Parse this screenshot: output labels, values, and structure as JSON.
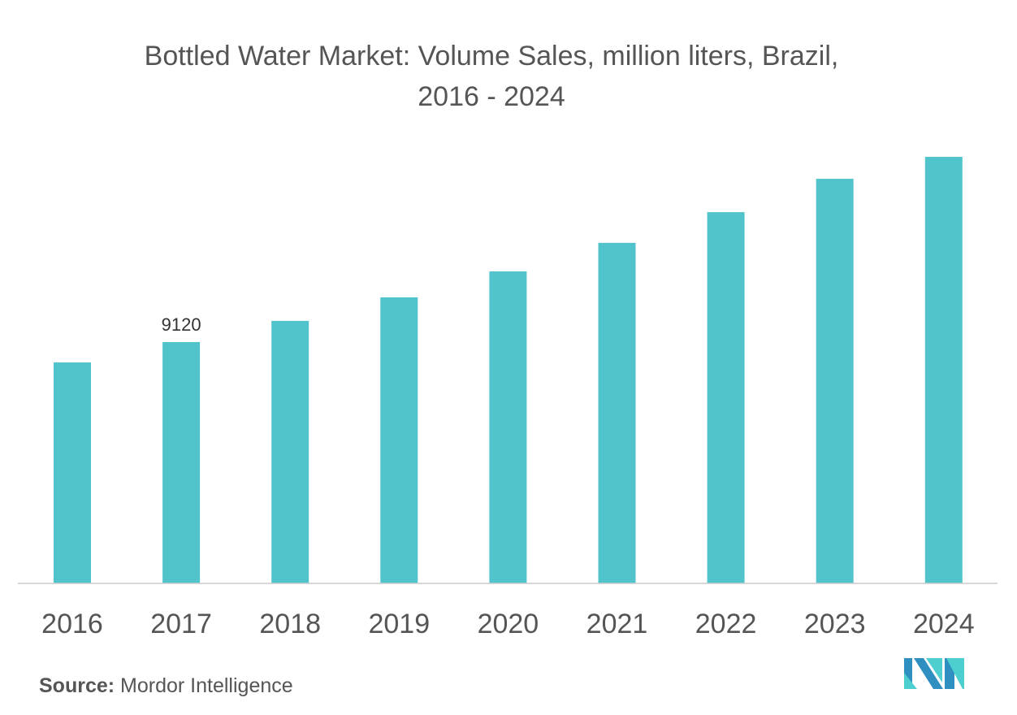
{
  "chart_data": {
    "type": "bar",
    "title": "Bottled Water Market: Volume Sales, million liters, Brazil, 2016 - 2024",
    "title_lines": [
      "Bottled Water Market: Volume Sales, million liters, Brazil,",
      "2016 - 2024"
    ],
    "categories": [
      "2016",
      "2017",
      "2018",
      "2019",
      "2020",
      "2021",
      "2022",
      "2023",
      "2024"
    ],
    "values": [
      8350,
      9120,
      9920,
      10810,
      11790,
      12870,
      14030,
      15290,
      16120
    ],
    "data_labels": [
      {
        "category": "2017",
        "text": "9120"
      }
    ],
    "xlabel": "",
    "ylabel": "",
    "ylim": [
      0,
      16800
    ],
    "grid": false,
    "bar_color": "#50C4CA"
  },
  "source": {
    "label": "Source:",
    "text": "Mordor Intelligence"
  },
  "logo": {
    "text": "Mordor Intelligence",
    "colors": [
      "#2E8FC0",
      "#4DCFD0"
    ]
  }
}
